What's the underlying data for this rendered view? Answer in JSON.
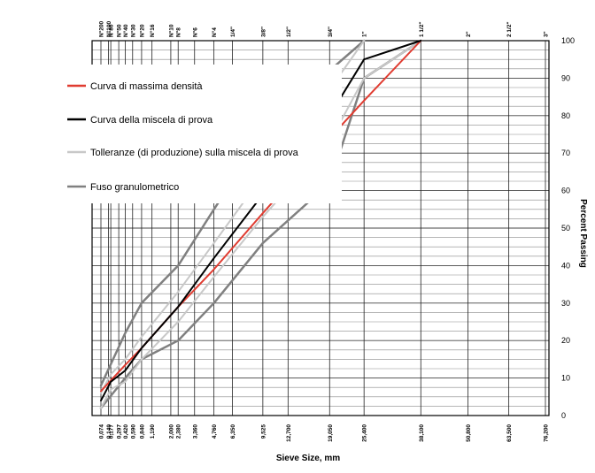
{
  "chart_data": {
    "type": "line",
    "x_scale": "power-0.45",
    "xlabel": "Sieve Size, mm",
    "ylabel": "Percent Passing",
    "ylim": [
      0,
      100
    ],
    "yticks": [
      0,
      10,
      20,
      30,
      40,
      50,
      60,
      70,
      80,
      90,
      100
    ],
    "grid": true,
    "legend_placement": "top-left",
    "sieves": [
      {
        "mm": 0.074,
        "top": "N°200",
        "bottom": "0,074"
      },
      {
        "mm": 0.149,
        "top": "N°100",
        "bottom": "0,149"
      },
      {
        "mm": 0.177,
        "top": "N°80",
        "bottom": "0,177"
      },
      {
        "mm": 0.297,
        "top": "N°50",
        "bottom": "0,297"
      },
      {
        "mm": 0.42,
        "top": "N°40",
        "bottom": "0,420"
      },
      {
        "mm": 0.59,
        "top": "N°30",
        "bottom": "0,590"
      },
      {
        "mm": 0.84,
        "top": "N°20",
        "bottom": "0,840"
      },
      {
        "mm": 1.19,
        "top": "N°16",
        "bottom": "1,190"
      },
      {
        "mm": 2.0,
        "top": "N°10",
        "bottom": "2,000"
      },
      {
        "mm": 2.38,
        "top": "N°8",
        "bottom": "2,380"
      },
      {
        "mm": 3.36,
        "top": "N°6",
        "bottom": "3,360"
      },
      {
        "mm": 4.76,
        "top": "N°4",
        "bottom": "4,760"
      },
      {
        "mm": 6.35,
        "top": "1/4\"",
        "bottom": "6,350"
      },
      {
        "mm": 9.525,
        "top": "3/8\"",
        "bottom": "9,525"
      },
      {
        "mm": 12.7,
        "top": "1/2\"",
        "bottom": "12,700"
      },
      {
        "mm": 19.05,
        "top": "3/4\"",
        "bottom": "19,050"
      },
      {
        "mm": 25.4,
        "top": "1\"",
        "bottom": "25,400"
      },
      {
        "mm": 38.1,
        "top": "1 1/2\"",
        "bottom": "38,100"
      },
      {
        "mm": 50.8,
        "top": "2\"",
        "bottom": "50,800"
      },
      {
        "mm": 63.5,
        "top": "2 1/2\"",
        "bottom": "63,500"
      },
      {
        "mm": 76.2,
        "top": "3\"",
        "bottom": "76,200"
      }
    ],
    "series": [
      {
        "name": "Curva di massima densità",
        "color": "#e03c31",
        "width": 2,
        "points": [
          [
            0.074,
            6.5
          ],
          [
            0.42,
            13.5
          ],
          [
            0.84,
            18
          ],
          [
            2.38,
            29
          ],
          [
            4.76,
            39
          ],
          [
            9.525,
            54
          ],
          [
            19.05,
            74
          ],
          [
            25.4,
            84
          ],
          [
            38.1,
            100
          ]
        ]
      },
      {
        "name": "Curva della miscela di prova",
        "color": "#000000",
        "width": 2,
        "points": [
          [
            0.074,
            4
          ],
          [
            0.177,
            9
          ],
          [
            0.42,
            12
          ],
          [
            0.84,
            18
          ],
          [
            2.38,
            29
          ],
          [
            4.76,
            42
          ],
          [
            9.525,
            59
          ],
          [
            19.05,
            80
          ],
          [
            25.4,
            95
          ],
          [
            38.1,
            100
          ]
        ]
      },
      {
        "name": "Tolleranze (di produzione) sulla miscela di prova",
        "color": "#c8c8c8",
        "width": 2,
        "segments": [
          [
            [
              0.074,
              6
            ],
            [
              0.177,
              11
            ],
            [
              0.42,
              15
            ],
            [
              0.84,
              21
            ],
            [
              2.38,
              33
            ],
            [
              4.76,
              46
            ],
            [
              9.525,
              64
            ],
            [
              19.05,
              87
            ],
            [
              25.4,
              100
            ]
          ],
          [
            [
              0.074,
              2
            ],
            [
              0.177,
              7
            ],
            [
              0.42,
              9
            ],
            [
              0.84,
              15
            ],
            [
              2.38,
              25
            ],
            [
              4.76,
              37
            ],
            [
              9.525,
              53
            ],
            [
              19.05,
              73
            ],
            [
              25.4,
              90
            ],
            [
              38.1,
              100
            ]
          ]
        ]
      },
      {
        "name": "Fuso granulometrico",
        "color": "#808080",
        "width": 2.5,
        "segments": [
          [
            [
              0.074,
              8
            ],
            [
              0.42,
              22
            ],
            [
              0.84,
              30
            ],
            [
              2.38,
              40
            ],
            [
              4.76,
              55
            ],
            [
              9.525,
              75
            ],
            [
              19.05,
              92
            ],
            [
              25.4,
              100
            ]
          ],
          [
            [
              0.074,
              2
            ],
            [
              0.42,
              10
            ],
            [
              0.84,
              15
            ],
            [
              2.38,
              20
            ],
            [
              4.76,
              30
            ],
            [
              9.525,
              46
            ],
            [
              19.05,
              62
            ],
            [
              25.4,
              90
            ],
            [
              38.1,
              100
            ]
          ]
        ]
      }
    ]
  }
}
